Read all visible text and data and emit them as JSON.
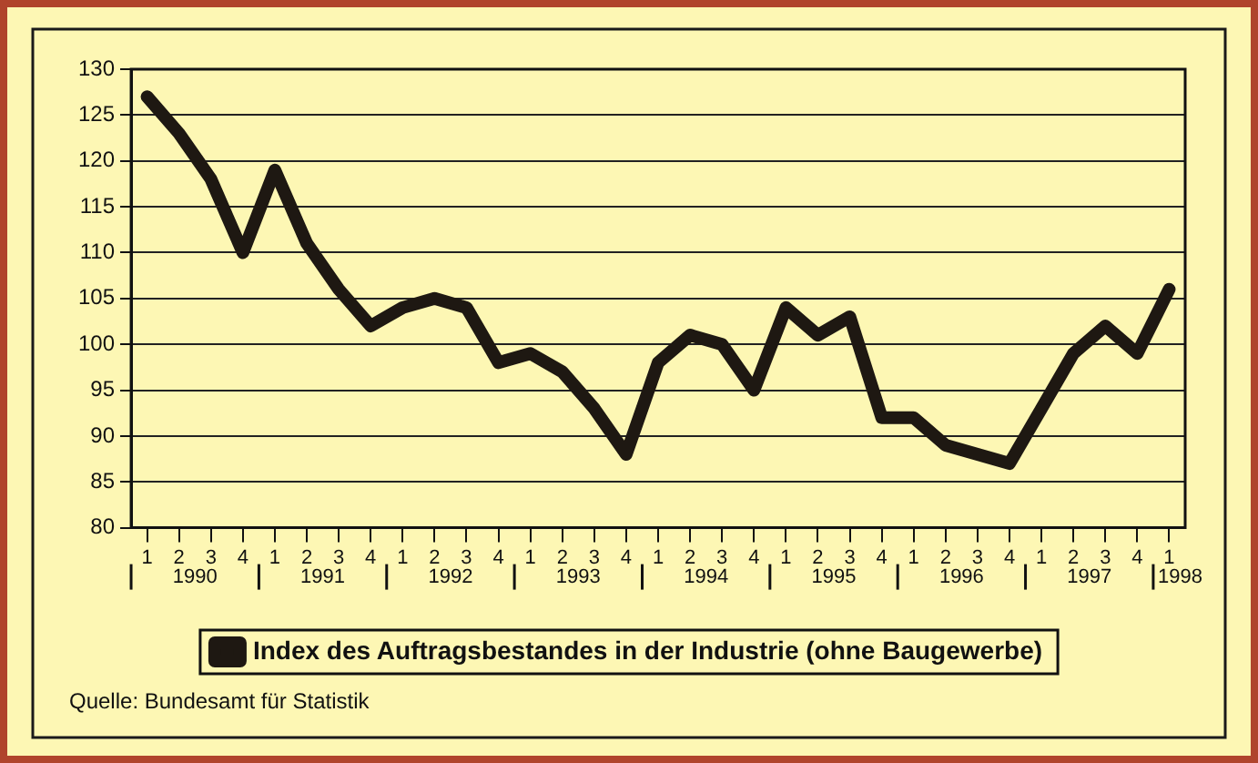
{
  "chart_data": {
    "type": "line",
    "categories": [
      "1",
      "2",
      "3",
      "4",
      "1",
      "2",
      "3",
      "4",
      "1",
      "2",
      "3",
      "4",
      "1",
      "2",
      "3",
      "4",
      "1",
      "2",
      "3",
      "4",
      "1",
      "2",
      "3",
      "4",
      "1",
      "2",
      "3",
      "4",
      "1",
      "2",
      "3",
      "4",
      "1"
    ],
    "series": [
      {
        "name": "Index des Auftragsbestandes in der Industrie (ohne Baugewerbe)",
        "color": "#1e1812",
        "values": [
          127,
          123,
          118,
          110,
          119,
          111,
          106,
          102,
          104,
          105,
          104,
          98,
          99,
          97,
          93,
          88,
          98,
          101,
          100,
          95,
          104,
          101,
          103,
          92,
          92,
          89,
          88,
          87,
          93,
          99,
          102,
          99,
          106
        ]
      }
    ],
    "ylim": [
      80,
      130
    ],
    "yticks": [
      80,
      85,
      90,
      95,
      100,
      105,
      110,
      115,
      120,
      125,
      130
    ],
    "grid": "y",
    "legend": "bottom",
    "marker": "none",
    "line_style": "solid",
    "annotations": [
      "1990",
      "1991",
      "1992",
      "1993",
      "1994",
      "1995",
      "1996",
      "1997",
      "1998",
      "Quelle: Bundesamt für Statistik"
    ]
  }
}
